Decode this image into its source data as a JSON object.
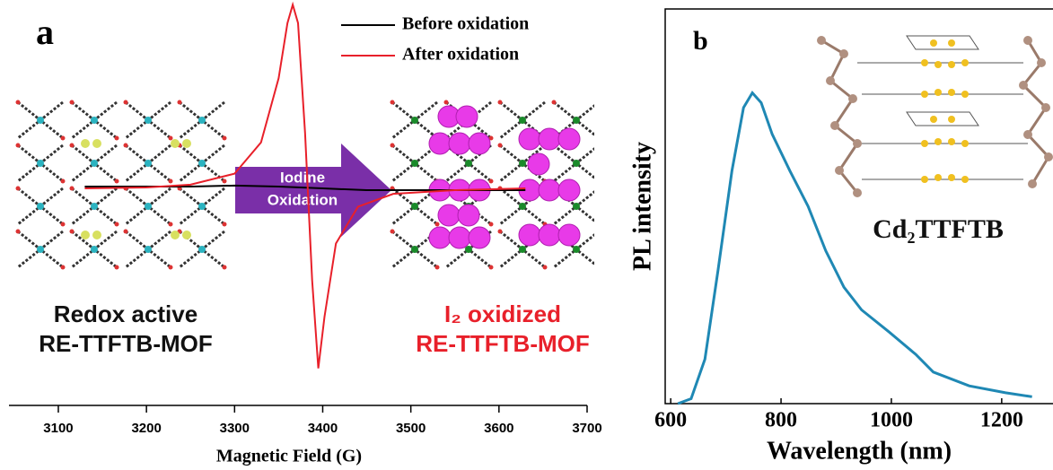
{
  "chart_data": [
    {
      "type": "line",
      "panel_label": "a",
      "xlabel": "Magnetic Field (G)",
      "xlim": [
        3044,
        3700
      ],
      "ylim": [
        -1.05,
        1.05
      ],
      "xticks": [
        3100,
        3200,
        3300,
        3400,
        3500,
        3600,
        3700
      ],
      "annotations": [
        "Redox active",
        "RE-TTFTB-MOF",
        "I₂ oxidized",
        "RE-TTFTB-MOF",
        "Iodine",
        "Oxidation"
      ],
      "legend": "top",
      "series": [
        {
          "name": "Before oxidation",
          "color": "#000000",
          "x": [
            3130,
            3250,
            3300,
            3350,
            3400,
            3450,
            3630
          ],
          "values": [
            0.01,
            0.01,
            0.015,
            0.01,
            0.0,
            -0.01,
            -0.01
          ]
        },
        {
          "name": "After oxidation",
          "color": "#e8202a",
          "x": [
            3130,
            3200,
            3250,
            3300,
            3330,
            3350,
            3360,
            3366,
            3372,
            3380,
            3388,
            3395,
            3402,
            3415,
            3440,
            3480,
            3550,
            3630
          ],
          "values": [
            0,
            0.005,
            0.02,
            0.08,
            0.25,
            0.6,
            0.9,
            1.0,
            0.9,
            0.3,
            -0.5,
            -0.98,
            -0.7,
            -0.3,
            -0.1,
            -0.03,
            -0.01,
            0
          ]
        }
      ]
    },
    {
      "type": "line",
      "panel_label": "b",
      "xlabel": "Wavelength (nm)",
      "ylabel": "PL intensity",
      "xlim": [
        590,
        1293
      ],
      "ylim": [
        0,
        4
      ],
      "xticks": [
        600,
        800,
        1000,
        1200
      ],
      "annotations": [
        "Cd₂TTFTB"
      ],
      "series": [
        {
          "color": "#1f88b4",
          "x": [
            613,
            637,
            662,
            686,
            711,
            732,
            748,
            764,
            784,
            816,
            849,
            881,
            914,
            946,
            995,
            1044,
            1076,
            1141,
            1207,
            1255
          ],
          "values": [
            0,
            0.05,
            0.45,
            1.36,
            2.36,
            3.0,
            3.15,
            3.05,
            2.73,
            2.36,
            2.0,
            1.55,
            1.18,
            0.95,
            0.73,
            0.5,
            0.32,
            0.18,
            0.11,
            0.07
          ]
        }
      ]
    }
  ]
}
